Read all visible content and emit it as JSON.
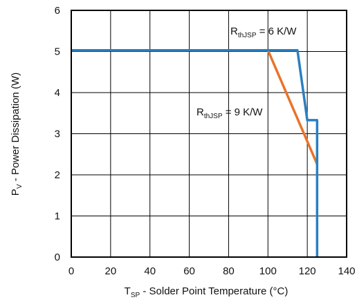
{
  "chart_data": {
    "type": "line",
    "title": "",
    "xlabel": {
      "main": "T",
      "sub": "SP",
      "rest": " - Solder Point Temperature (°C)"
    },
    "ylabel": {
      "main": "P",
      "sub": "V",
      "rest": " - Power Dissipation (W)"
    },
    "xlim": [
      0,
      140
    ],
    "ylim": [
      0,
      6
    ],
    "xticks": [
      0,
      20,
      40,
      60,
      80,
      100,
      120,
      140
    ],
    "yticks": [
      0,
      1,
      2,
      3,
      4,
      5,
      6
    ],
    "grid": true,
    "series": [
      {
        "label": {
          "main": "R",
          "sub": "thJSP",
          "rest": " = 6 K/W"
        },
        "color": "#2a7fc1",
        "x": [
          0,
          115,
          120,
          125,
          125
        ],
        "y": [
          5.03,
          5.03,
          3.33,
          3.33,
          0
        ]
      },
      {
        "label": {
          "main": "R",
          "sub": "thJSP",
          "rest": " = 9 K/W"
        },
        "color": "#e8732a",
        "x": [
          100,
          125
        ],
        "y": [
          5.03,
          2.26
        ]
      }
    ]
  }
}
